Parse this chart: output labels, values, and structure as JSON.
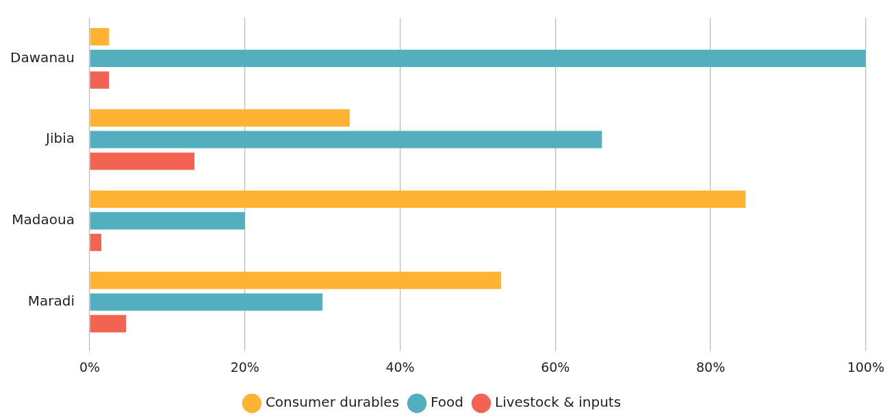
{
  "chart_data": {
    "type": "bar",
    "orientation": "horizontal",
    "categories": [
      "Dawanau",
      "Jibia",
      "Madaoua",
      "Maradi"
    ],
    "series": [
      {
        "name": "Consumer durables",
        "color": "#ffb335",
        "values": [
          2.5,
          33.5,
          84.5,
          53
        ]
      },
      {
        "name": "Food",
        "color": "#53aebe",
        "values": [
          100,
          66,
          20,
          30
        ]
      },
      {
        "name": "Livestock & inputs",
        "color": "#f26352",
        "values": [
          2.5,
          13.5,
          1.5,
          4.7
        ]
      }
    ],
    "xlim": [
      0,
      100
    ],
    "xticks": [
      {
        "value": 0,
        "label": "0%"
      },
      {
        "value": 20,
        "label": "20%"
      },
      {
        "value": 40,
        "label": "40%"
      },
      {
        "value": 60,
        "label": "60%"
      },
      {
        "value": 80,
        "label": "80%"
      },
      {
        "value": 100,
        "label": "100%"
      }
    ],
    "grid": "x",
    "legend": "bottom"
  }
}
